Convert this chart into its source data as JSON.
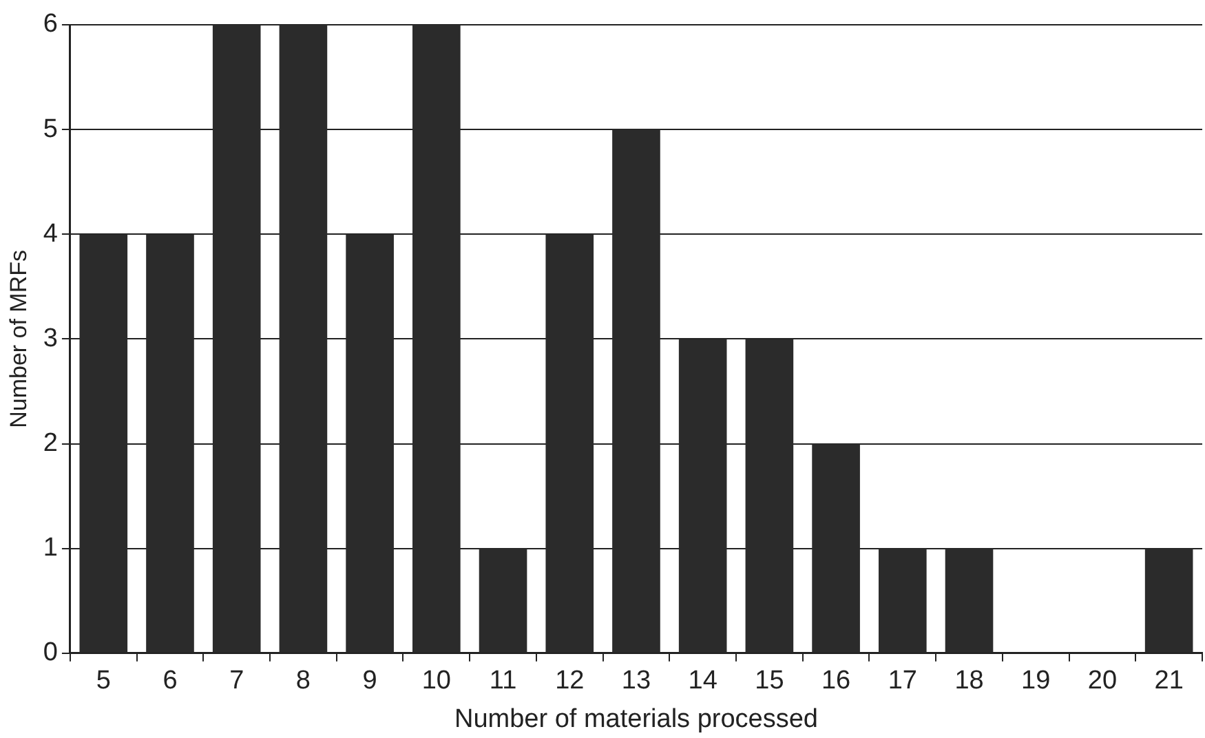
{
  "chart_data": {
    "type": "bar",
    "xlabel": "Number of materials processed",
    "ylabel": "Number of MRFs",
    "categories": [
      "5",
      "6",
      "7",
      "8",
      "9",
      "10",
      "11",
      "12",
      "13",
      "14",
      "15",
      "16",
      "17",
      "18",
      "19",
      "20",
      "21"
    ],
    "values": [
      4,
      4,
      6,
      6,
      4,
      6,
      1,
      4,
      5,
      3,
      3,
      2,
      1,
      1,
      0,
      0,
      1
    ],
    "color": "#2b2b2b",
    "ylim": [
      0,
      6
    ],
    "yticks": [
      0,
      1,
      2,
      3,
      4,
      5,
      6
    ],
    "grid": "y"
  }
}
